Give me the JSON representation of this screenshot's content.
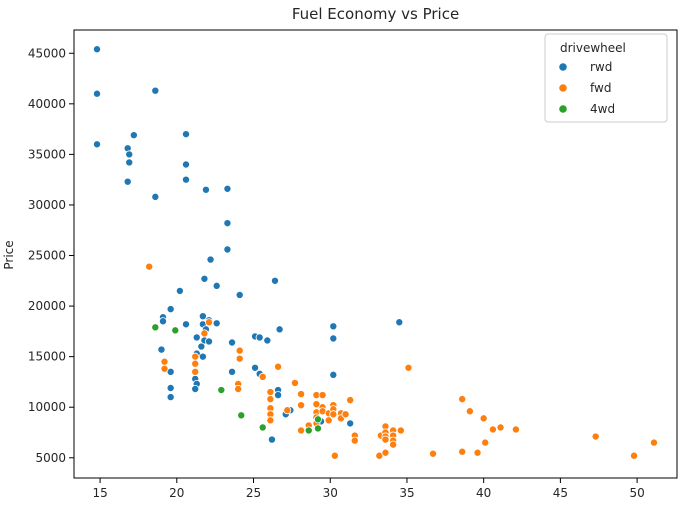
{
  "chart_data": {
    "type": "scatter",
    "title": "Fuel Economy vs Price",
    "xlabel": "",
    "ylabel": "Price",
    "xlim": [
      13.3,
      52.6
    ],
    "ylim": [
      3000,
      47300
    ],
    "xticks": [
      15,
      20,
      25,
      30,
      35,
      40,
      45,
      50
    ],
    "yticks": [
      5000,
      10000,
      15000,
      20000,
      25000,
      30000,
      35000,
      40000,
      45000
    ],
    "grid": false,
    "legend": {
      "title": "drivewheel",
      "position": "top-right"
    },
    "series": [
      {
        "name": "rwd",
        "color": "#1f77b4",
        "points": [
          [
            14.8,
            45400
          ],
          [
            14.8,
            41000
          ],
          [
            14.8,
            36000
          ],
          [
            18.6,
            41300
          ],
          [
            17.2,
            36900
          ],
          [
            16.8,
            35600
          ],
          [
            16.9,
            35000
          ],
          [
            16.9,
            34200
          ],
          [
            16.8,
            32300
          ],
          [
            18.6,
            30800
          ],
          [
            20.6,
            37000
          ],
          [
            20.6,
            34000
          ],
          [
            20.6,
            32500
          ],
          [
            21.9,
            31500
          ],
          [
            23.3,
            31600
          ],
          [
            23.3,
            28200
          ],
          [
            23.3,
            25600
          ],
          [
            22.2,
            24600
          ],
          [
            21.8,
            22700
          ],
          [
            22.6,
            22000
          ],
          [
            26.4,
            22500
          ],
          [
            24.1,
            21100
          ],
          [
            20.2,
            21500
          ],
          [
            19.6,
            19700
          ],
          [
            19.1,
            18900
          ],
          [
            19.1,
            18500
          ],
          [
            20.6,
            18200
          ],
          [
            21.7,
            19000
          ],
          [
            22.1,
            18600
          ],
          [
            21.7,
            18200
          ],
          [
            22.6,
            18300
          ],
          [
            21.9,
            17700
          ],
          [
            21.3,
            16900
          ],
          [
            21.8,
            16600
          ],
          [
            22.1,
            16500
          ],
          [
            21.6,
            16000
          ],
          [
            21.3,
            15300
          ],
          [
            21.7,
            15000
          ],
          [
            19.0,
            15700
          ],
          [
            23.6,
            16400
          ],
          [
            25.1,
            17000
          ],
          [
            25.4,
            16900
          ],
          [
            25.9,
            16600
          ],
          [
            26.7,
            17700
          ],
          [
            30.2,
            18000
          ],
          [
            30.2,
            16800
          ],
          [
            34.5,
            18400
          ],
          [
            23.6,
            13500
          ],
          [
            25.1,
            13900
          ],
          [
            25.4,
            13300
          ],
          [
            26.6,
            11700
          ],
          [
            26.6,
            11200
          ],
          [
            27.4,
            9700
          ],
          [
            27.1,
            9300
          ],
          [
            26.2,
            6800
          ],
          [
            30.2,
            13200
          ],
          [
            19.6,
            13500
          ],
          [
            21.2,
            12800
          ],
          [
            21.3,
            12300
          ],
          [
            21.2,
            11800
          ],
          [
            19.6,
            11900
          ],
          [
            19.6,
            11000
          ],
          [
            31.3,
            8400
          ],
          [
            29.4,
            8600
          ]
        ]
      },
      {
        "name": "fwd",
        "color": "#ff7f0e",
        "points": [
          [
            18.2,
            23900
          ],
          [
            19.2,
            14500
          ],
          [
            19.2,
            13800
          ],
          [
            21.2,
            15000
          ],
          [
            21.2,
            14300
          ],
          [
            21.2,
            13500
          ],
          [
            21.8,
            17300
          ],
          [
            22.1,
            18400
          ],
          [
            24.1,
            15600
          ],
          [
            24.1,
            14800
          ],
          [
            24.0,
            12300
          ],
          [
            24.0,
            11800
          ],
          [
            25.6,
            13000
          ],
          [
            26.6,
            14000
          ],
          [
            26.1,
            11500
          ],
          [
            26.1,
            10800
          ],
          [
            26.1,
            9900
          ],
          [
            26.1,
            9300
          ],
          [
            26.1,
            8700
          ],
          [
            27.2,
            9700
          ],
          [
            27.7,
            12400
          ],
          [
            28.1,
            11300
          ],
          [
            28.1,
            10200
          ],
          [
            28.1,
            7700
          ],
          [
            28.6,
            8200
          ],
          [
            29.1,
            11200
          ],
          [
            29.1,
            10300
          ],
          [
            29.1,
            9500
          ],
          [
            29.1,
            9000
          ],
          [
            29.1,
            8400
          ],
          [
            29.5,
            11200
          ],
          [
            29.5,
            10000
          ],
          [
            29.5,
            9600
          ],
          [
            29.9,
            9400
          ],
          [
            29.9,
            8700
          ],
          [
            30.2,
            10200
          ],
          [
            30.2,
            9800
          ],
          [
            30.2,
            9300
          ],
          [
            30.7,
            9400
          ],
          [
            30.7,
            8900
          ],
          [
            31.0,
            9300
          ],
          [
            31.3,
            10700
          ],
          [
            31.6,
            7200
          ],
          [
            31.6,
            6700
          ],
          [
            30.3,
            5200
          ],
          [
            33.3,
            7200
          ],
          [
            33.2,
            5200
          ],
          [
            33.6,
            8100
          ],
          [
            33.6,
            7500
          ],
          [
            33.6,
            7100
          ],
          [
            33.6,
            6800
          ],
          [
            33.6,
            5500
          ],
          [
            34.1,
            7700
          ],
          [
            34.1,
            7200
          ],
          [
            34.1,
            6700
          ],
          [
            34.1,
            6300
          ],
          [
            34.6,
            7700
          ],
          [
            35.1,
            13900
          ],
          [
            36.7,
            5400
          ],
          [
            38.6,
            10800
          ],
          [
            38.6,
            5600
          ],
          [
            39.1,
            9600
          ],
          [
            39.6,
            5500
          ],
          [
            40.0,
            8900
          ],
          [
            40.1,
            6500
          ],
          [
            40.6,
            7800
          ],
          [
            41.1,
            8000
          ],
          [
            42.1,
            7800
          ],
          [
            47.3,
            7100
          ],
          [
            49.8,
            5200
          ],
          [
            51.1,
            6500
          ]
        ]
      },
      {
        "name": "4wd",
        "color": "#2ca02c",
        "points": [
          [
            18.6,
            17900
          ],
          [
            19.9,
            17600
          ],
          [
            22.9,
            11700
          ],
          [
            24.2,
            9200
          ],
          [
            25.6,
            8000
          ],
          [
            28.6,
            7700
          ],
          [
            29.2,
            8800
          ],
          [
            29.2,
            7900
          ]
        ]
      }
    ]
  }
}
